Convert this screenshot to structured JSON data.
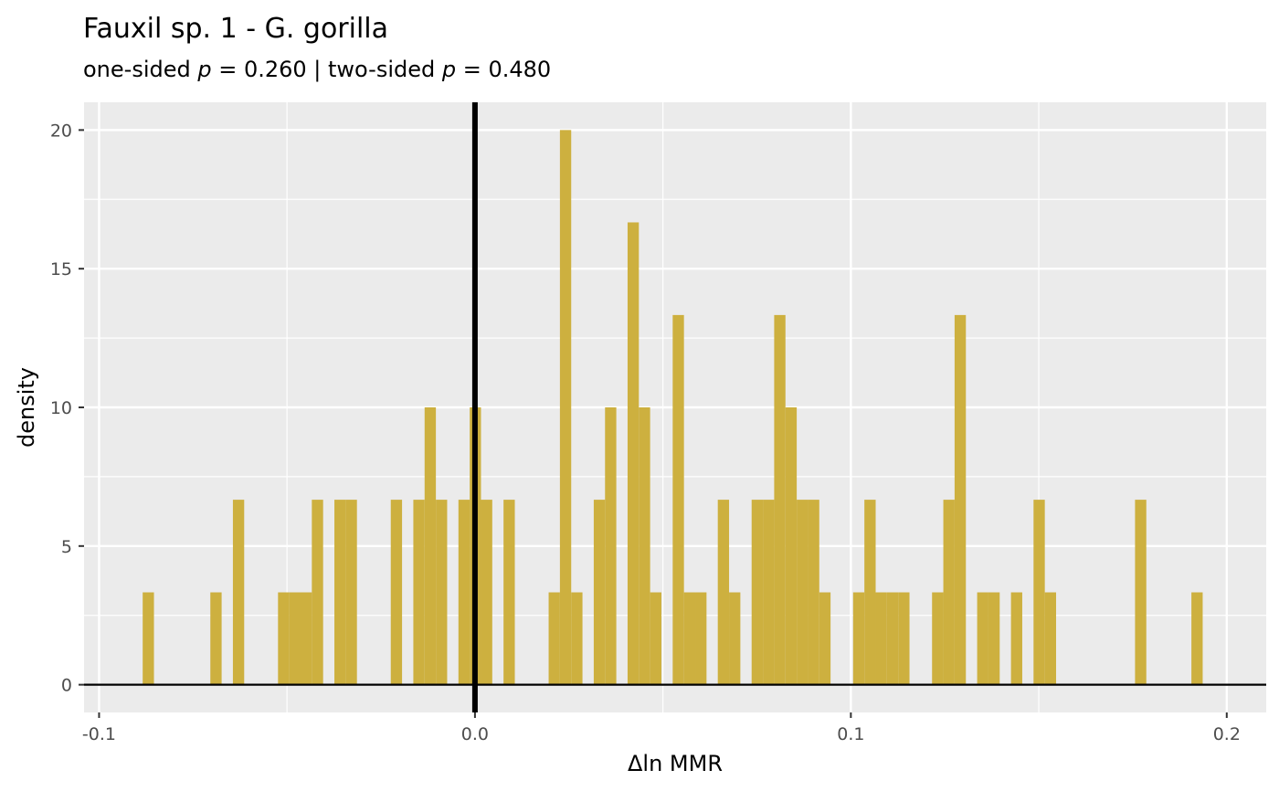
{
  "chart_data": {
    "type": "bar",
    "title": "Fauxil sp. 1 - G. gorilla",
    "subtitle": {
      "one_sided_prefix": "one-sided ",
      "p_symbol": "p",
      "one_sided_value": " = 0.260",
      "separator": " | two-sided ",
      "two_sided_value": " = 0.480"
    },
    "xlabel": "Δln MMR",
    "ylabel": "density",
    "xlim": [
      -0.104,
      0.2105
    ],
    "ylim": [
      -1.0,
      21.0
    ],
    "xticks": [
      -0.1,
      0.0,
      0.1,
      0.2
    ],
    "xtick_labels": [
      "-0.1",
      "0.0",
      "0.1",
      "0.2"
    ],
    "yticks": [
      0,
      5,
      10,
      15,
      20
    ],
    "ytick_labels": [
      "0",
      "5",
      "10",
      "15",
      "20"
    ],
    "bin_width": 0.003,
    "bins": [
      {
        "x": -0.0869,
        "y": 3.33
      },
      {
        "x": -0.0689,
        "y": 3.33
      },
      {
        "x": -0.0629,
        "y": 6.67
      },
      {
        "x": -0.0509,
        "y": 3.33
      },
      {
        "x": -0.0479,
        "y": 3.33
      },
      {
        "x": -0.0449,
        "y": 3.33
      },
      {
        "x": -0.0419,
        "y": 6.67
      },
      {
        "x": -0.0359,
        "y": 6.67
      },
      {
        "x": -0.0329,
        "y": 6.67
      },
      {
        "x": -0.0209,
        "y": 6.67
      },
      {
        "x": -0.0149,
        "y": 6.67
      },
      {
        "x": -0.0119,
        "y": 10
      },
      {
        "x": -0.0089,
        "y": 6.67
      },
      {
        "x": -0.0029,
        "y": 6.67
      },
      {
        "x": 0.0001,
        "y": 10
      },
      {
        "x": 0.0031,
        "y": 6.67
      },
      {
        "x": 0.0091,
        "y": 6.67
      },
      {
        "x": 0.0211,
        "y": 3.33
      },
      {
        "x": 0.0241,
        "y": 20
      },
      {
        "x": 0.0271,
        "y": 3.33
      },
      {
        "x": 0.0331,
        "y": 6.67
      },
      {
        "x": 0.0361,
        "y": 10
      },
      {
        "x": 0.0421,
        "y": 16.67
      },
      {
        "x": 0.0451,
        "y": 10
      },
      {
        "x": 0.0481,
        "y": 3.33
      },
      {
        "x": 0.0541,
        "y": 13.33
      },
      {
        "x": 0.0571,
        "y": 3.33
      },
      {
        "x": 0.0601,
        "y": 3.33
      },
      {
        "x": 0.0661,
        "y": 6.67
      },
      {
        "x": 0.0691,
        "y": 3.33
      },
      {
        "x": 0.0751,
        "y": 6.67
      },
      {
        "x": 0.0781,
        "y": 6.67
      },
      {
        "x": 0.0811,
        "y": 13.33
      },
      {
        "x": 0.0841,
        "y": 10
      },
      {
        "x": 0.0871,
        "y": 6.67
      },
      {
        "x": 0.0901,
        "y": 6.67
      },
      {
        "x": 0.0931,
        "y": 3.33
      },
      {
        "x": 0.1021,
        "y": 3.33
      },
      {
        "x": 0.1051,
        "y": 6.67
      },
      {
        "x": 0.1081,
        "y": 3.33
      },
      {
        "x": 0.1111,
        "y": 3.33
      },
      {
        "x": 0.1141,
        "y": 3.33
      },
      {
        "x": 0.1231,
        "y": 3.33
      },
      {
        "x": 0.1261,
        "y": 6.67
      },
      {
        "x": 0.1291,
        "y": 13.33
      },
      {
        "x": 0.1351,
        "y": 3.33
      },
      {
        "x": 0.1381,
        "y": 3.33
      },
      {
        "x": 0.1441,
        "y": 3.33
      },
      {
        "x": 0.1501,
        "y": 6.67
      },
      {
        "x": 0.1531,
        "y": 3.33
      },
      {
        "x": 0.1771,
        "y": 6.67
      },
      {
        "x": 0.1921,
        "y": 3.33
      }
    ],
    "reference_line_x": 0.0,
    "colors": {
      "bar_fill": "#cdb03f",
      "panel_background": "#ebebeb",
      "grid_line": "#ffffff",
      "reference_line": "#000000"
    },
    "grid": true,
    "legend": "none"
  }
}
